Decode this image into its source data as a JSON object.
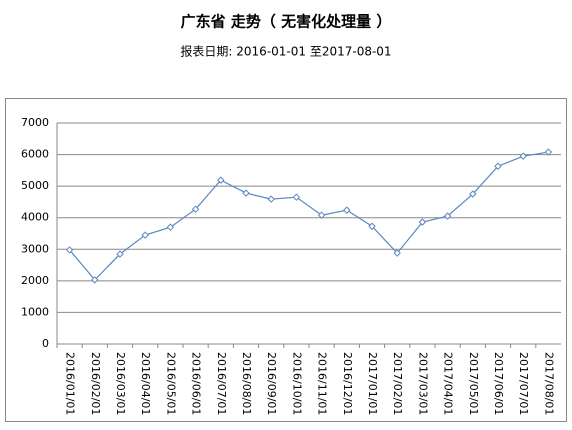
{
  "chart_data": {
    "type": "line",
    "title": "广东省  走势（ 无害化处理量 ）",
    "subtitle": "报表日期: 2016-01-01 至2017-08-01",
    "categories": [
      "2016/01/01",
      "2016/02/01",
      "2016/03/01",
      "2016/04/01",
      "2016/05/01",
      "2016/06/01",
      "2016/07/01",
      "2016/08/01",
      "2016/09/01",
      "2016/10/01",
      "2016/11/01",
      "2016/12/01",
      "2017/01/01",
      "2017/02/01",
      "2017/03/01",
      "2017/04/01",
      "2017/05/01",
      "2017/06/01",
      "2017/07/01",
      "2017/08/01"
    ],
    "values": [
      2980,
      2030,
      2850,
      3450,
      3700,
      4270,
      5190,
      4780,
      4590,
      4650,
      4080,
      4240,
      3730,
      2880,
      3860,
      4050,
      4750,
      5630,
      5950,
      6080
    ],
    "color": "#5b86c0",
    "ylim": [
      0,
      7000
    ],
    "yticks": [
      0,
      1000,
      2000,
      3000,
      4000,
      5000,
      6000,
      7000
    ],
    "grid": true
  }
}
